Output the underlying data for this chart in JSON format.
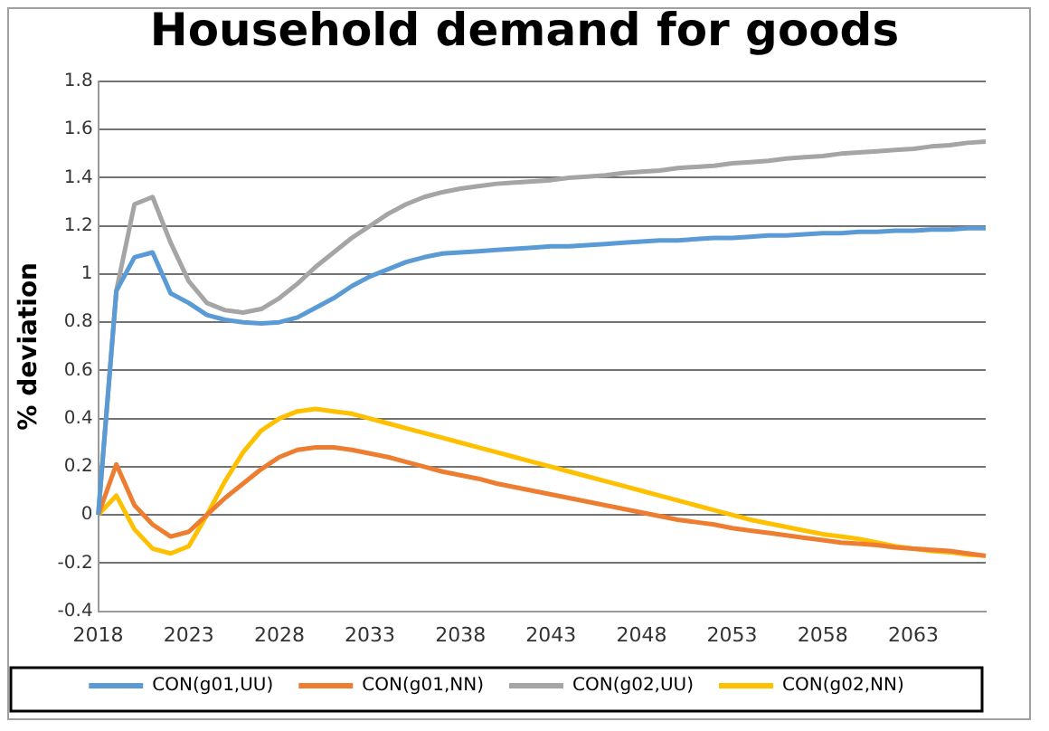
{
  "chart_data": {
    "type": "line",
    "title": "Household demand for goods",
    "ylabel": "% deviation",
    "categories": [
      "2018",
      null,
      null,
      null,
      null,
      "2023",
      null,
      null,
      null,
      null,
      "2028",
      null,
      null,
      null,
      null,
      "2033",
      null,
      null,
      null,
      null,
      "2038",
      null,
      null,
      null,
      null,
      "2043",
      null,
      null,
      null,
      null,
      "2048",
      null,
      null,
      null,
      null,
      "2053",
      null,
      null,
      null,
      null,
      "2058",
      null,
      null,
      null,
      null,
      "2063",
      null,
      null,
      null,
      null
    ],
    "series": [
      {
        "name": "CON(g01,UU)",
        "color": "#5b9bd5",
        "values": [
          0,
          0.93,
          1.07,
          1.09,
          0.92,
          0.88,
          0.83,
          0.81,
          0.8,
          0.795,
          0.8,
          0.82,
          0.86,
          0.9,
          0.95,
          0.99,
          1.02,
          1.05,
          1.07,
          1.085,
          1.09,
          1.095,
          1.1,
          1.105,
          1.11,
          1.115,
          1.115,
          1.12,
          1.125,
          1.13,
          1.135,
          1.14,
          1.14,
          1.145,
          1.15,
          1.15,
          1.155,
          1.16,
          1.16,
          1.165,
          1.17,
          1.17,
          1.175,
          1.175,
          1.18,
          1.18,
          1.185,
          1.185,
          1.19,
          1.19
        ]
      },
      {
        "name": "CON(g01,NN)",
        "color": "#ed7d31",
        "values": [
          0,
          0.21,
          0.04,
          -0.04,
          -0.09,
          -0.07,
          0,
          0.07,
          0.13,
          0.19,
          0.24,
          0.27,
          0.28,
          0.28,
          0.27,
          0.255,
          0.24,
          0.22,
          0.2,
          0.18,
          0.165,
          0.15,
          0.13,
          0.115,
          0.1,
          0.085,
          0.07,
          0.055,
          0.04,
          0.025,
          0.01,
          -0.005,
          -0.02,
          -0.03,
          -0.04,
          -0.055,
          -0.065,
          -0.075,
          -0.085,
          -0.095,
          -0.105,
          -0.115,
          -0.12,
          -0.125,
          -0.135,
          -0.14,
          -0.145,
          -0.15,
          -0.16,
          -0.17
        ]
      },
      {
        "name": "CON(g02,UU)",
        "color": "#a5a5a5",
        "values": [
          0,
          0.93,
          1.29,
          1.32,
          1.13,
          0.97,
          0.88,
          0.85,
          0.84,
          0.855,
          0.9,
          0.96,
          1.03,
          1.09,
          1.15,
          1.2,
          1.25,
          1.29,
          1.32,
          1.34,
          1.355,
          1.365,
          1.375,
          1.38,
          1.385,
          1.39,
          1.4,
          1.405,
          1.41,
          1.42,
          1.425,
          1.43,
          1.44,
          1.445,
          1.45,
          1.46,
          1.465,
          1.47,
          1.48,
          1.485,
          1.49,
          1.5,
          1.505,
          1.51,
          1.515,
          1.52,
          1.53,
          1.535,
          1.545,
          1.55
        ]
      },
      {
        "name": "CON(g02,NN)",
        "color": "#ffc000",
        "values": [
          0,
          0.08,
          -0.06,
          -0.14,
          -0.16,
          -0.13,
          0,
          0.14,
          0.26,
          0.35,
          0.4,
          0.43,
          0.44,
          0.43,
          0.42,
          0.4,
          0.38,
          0.36,
          0.34,
          0.32,
          0.3,
          0.28,
          0.26,
          0.24,
          0.22,
          0.2,
          0.18,
          0.16,
          0.14,
          0.12,
          0.1,
          0.08,
          0.06,
          0.04,
          0.02,
          0,
          -0.02,
          -0.035,
          -0.05,
          -0.065,
          -0.08,
          -0.09,
          -0.1,
          -0.115,
          -0.13,
          -0.14,
          -0.15,
          -0.155,
          -0.165,
          -0.17
        ]
      }
    ],
    "ylim": [
      -0.4,
      1.8
    ],
    "yticks": [
      -0.4,
      -0.2,
      0,
      0.2,
      0.4,
      0.6,
      0.8,
      1,
      1.2,
      1.4,
      1.6,
      1.8
    ],
    "grid": "y",
    "legend": "bottom",
    "marker": "none",
    "line_style": "solid"
  }
}
